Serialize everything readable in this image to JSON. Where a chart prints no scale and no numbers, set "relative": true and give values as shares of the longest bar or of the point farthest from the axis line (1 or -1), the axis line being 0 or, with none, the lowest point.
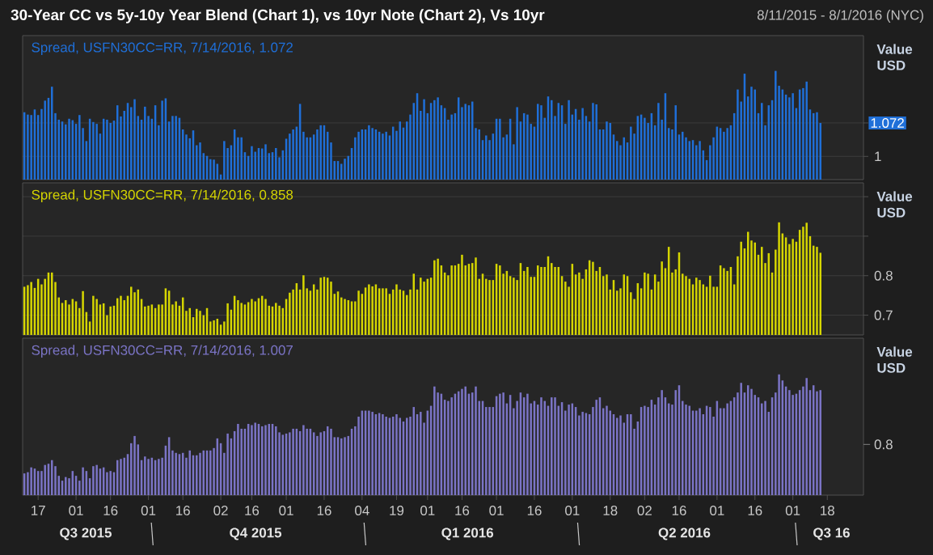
{
  "chart_data": [
    {
      "type": "bar",
      "title": "30-Year CC vs 5y-10y Year Blend (Chart 1), vs 10yr Note (Chart 2), Vs 10yr",
      "subtitle": "8/11/2015 - 8/1/2016 (NYC)",
      "ylabel": "Value USD",
      "ylim": [
        0.95,
        1.26
      ],
      "yticks": [
        1,
        {
          "value": 1.072,
          "label": "1.072"
        }
      ],
      "grid": "y",
      "legend": "top left",
      "tick_labels": "y",
      "categories": [
        null,
        null,
        null,
        null,
        "17",
        null,
        null,
        null,
        null,
        null,
        null,
        null,
        null,
        null,
        null,
        "01",
        null,
        null,
        null,
        null,
        null,
        null,
        null,
        null,
        null,
        "16",
        null,
        null,
        null,
        null,
        null,
        null,
        null,
        null,
        null,
        null,
        "01",
        null,
        null,
        null,
        null,
        null,
        null,
        null,
        null,
        null,
        "16",
        null,
        null,
        null,
        null,
        null,
        null,
        null,
        null,
        null,
        null,
        "02",
        null,
        null,
        null,
        null,
        null,
        null,
        null,
        null,
        "16",
        null,
        null,
        null,
        null,
        null,
        null,
        null,
        null,
        null,
        "01",
        null,
        null,
        null,
        null,
        null,
        null,
        null,
        null,
        null,
        null,
        "16",
        null,
        null,
        null,
        null,
        null,
        null,
        null,
        null,
        null,
        null,
        "04",
        null,
        null,
        null,
        null,
        null,
        null,
        null,
        null,
        null,
        "19",
        null,
        null,
        null,
        null,
        null,
        null,
        null,
        null,
        "01",
        null,
        null,
        null,
        null,
        null,
        null,
        null,
        null,
        null,
        "16",
        null,
        null,
        null,
        null,
        null,
        null,
        null,
        null,
        null,
        "01",
        null,
        null,
        null,
        null,
        null,
        null,
        null,
        null,
        null,
        null,
        "16",
        null,
        null,
        null,
        null,
        null,
        null,
        null,
        null,
        null,
        null,
        "01",
        null,
        null,
        null,
        null,
        null,
        null,
        null,
        null,
        null,
        null,
        "18",
        null,
        null,
        null,
        null,
        null,
        null,
        null,
        null,
        null,
        "02",
        null,
        null,
        null,
        null,
        null,
        null,
        null,
        null,
        null,
        "16",
        null,
        null,
        null,
        null,
        null,
        null,
        null,
        null,
        null,
        null,
        "01",
        null,
        null,
        null,
        null,
        null,
        null,
        null,
        null,
        null,
        null,
        "16",
        null,
        null,
        null,
        null,
        null,
        null,
        null,
        null,
        null,
        null,
        "01",
        null,
        null,
        null,
        null,
        null,
        null,
        null,
        null,
        null,
        "18",
        null,
        null,
        null,
        null,
        null,
        null,
        null,
        null,
        null,
        null
      ],
      "series": [
        {
          "name": "Spread, USFN30CC=RR, 7/14/2016, 1.072",
          "color": "#1f6fd8",
          "values": [
            1.095,
            1.09,
            1.089,
            1.101,
            1.089,
            1.102,
            1.12,
            1.126,
            1.15,
            1.093,
            1.079,
            1.075,
            1.069,
            1.081,
            1.078,
            1.07,
            1.089,
            1.061,
            1.033,
            1.081,
            1.074,
            1.07,
            1.049,
            1.081,
            1.079,
            1.072,
            1.077,
            1.11,
            1.086,
            1.098,
            1.115,
            1.106,
            1.123,
            1.087,
            1.079,
            1.107,
            1.087,
            1.081,
            1.11,
            1.067,
            1.12,
            1.125,
            1.075,
            1.087,
            1.087,
            1.083,
            1.058,
            1.047,
            1.039,
            1.056,
            1.024,
            1.03,
            1.007,
            1.001,
            0.994,
            0.993,
            0.984,
            0.961,
            1.033,
            1.018,
            1.024,
            1.058,
            1.041,
            1.041,
            1.009,
            1.001,
            1.022,
            1.01,
            1.018,
            1.017,
            1.026,
            1.007,
            1.009,
            1.018,
            0.998,
            1.013,
            1.038,
            1.049,
            1.058,
            1.064,
            1.113,
            1.053,
            1.041,
            1.041,
            1.047,
            1.058,
            1.067,
            1.067,
            1.053,
            1.03,
            0.99,
            0.99,
            0.984,
            0.995,
            1.001,
            1.018,
            1.041,
            1.053,
            1.058,
            1.058,
            1.067,
            1.061,
            1.058,
            1.053,
            1.049,
            1.053,
            1.045,
            1.064,
            1.055,
            1.075,
            1.062,
            1.075,
            1.09,
            1.115,
            1.136,
            1.098,
            1.123,
            1.093,
            1.115,
            1.121,
            1.127,
            1.11,
            1.104,
            1.079,
            1.09,
            1.093,
            1.127,
            1.106,
            1.113,
            1.11,
            1.118,
            1.061,
            1.058,
            1.035,
            1.045,
            1.035,
            1.049,
            1.081,
            1.081,
            1.041,
            1.047,
            1.081,
            1.026,
            1.106,
            1.075,
            1.093,
            1.09,
            1.07,
            1.064,
            1.113,
            1.11,
            1.083,
            1.129,
            1.121,
            1.087,
            1.115,
            1.11,
            1.07,
            1.121,
            1.09,
            1.102,
            1.079,
            1.104,
            1.087,
            1.075,
            1.115,
            1.112,
            1.058,
            1.058,
            1.075,
            1.072,
            1.047,
            1.033,
            1.024,
            1.041,
            1.03,
            1.064,
            1.049,
            1.087,
            1.09,
            1.083,
            1.072,
            1.093,
            1.067,
            1.115,
            1.079,
            1.136,
            1.061,
            1.058,
            1.11,
            1.047,
            1.053,
            1.041,
            1.033,
            1.035,
            1.024,
            1.033,
            1.013,
            0.992,
            1.024,
            1.041,
            1.064,
            1.061,
            1.053,
            1.061,
            1.067,
            1.093,
            1.144,
            1.118,
            1.178,
            1.129,
            1.15,
            1.144,
            1.093,
            1.115,
            1.067,
            1.11,
            1.121,
            1.184,
            1.152,
            1.144,
            1.133,
            1.127,
            1.136,
            1.104,
            1.144,
            1.147,
            1.161,
            1.101,
            1.093,
            1.095,
            1.072,
            null,
            null,
            null,
            null,
            null,
            null,
            null,
            null,
            null,
            null,
            null,
            null
          ]
        }
      ]
    },
    {
      "type": "bar",
      "ylabel": "Value USD",
      "ylim": [
        0.65,
        1.035
      ],
      "yticks": [
        0.7,
        0.8,
        {
          "value": 0.9,
          "label": null
        },
        {
          "value": 1.0,
          "label": null
        }
      ],
      "grid": "y",
      "legend": "top left",
      "tick_labels": "y",
      "categories": [
        null,
        null,
        null,
        null,
        "17",
        null,
        null,
        null,
        null,
        null,
        null,
        null,
        null,
        null,
        null,
        "01",
        null,
        null,
        null,
        null,
        null,
        null,
        null,
        null,
        null,
        "16",
        null,
        null,
        null,
        null,
        null,
        null,
        null,
        null,
        null,
        null,
        "01",
        null,
        null,
        null,
        null,
        null,
        null,
        null,
        null,
        null,
        "16",
        null,
        null,
        null,
        null,
        null,
        null,
        null,
        null,
        null,
        null,
        "02",
        null,
        null,
        null,
        null,
        null,
        null,
        null,
        null,
        "16",
        null,
        null,
        null,
        null,
        null,
        null,
        null,
        null,
        null,
        "01",
        null,
        null,
        null,
        null,
        null,
        null,
        null,
        null,
        null,
        null,
        "16",
        null,
        null,
        null,
        null,
        null,
        null,
        null,
        null,
        null,
        null,
        "04",
        null,
        null,
        null,
        null,
        null,
        null,
        null,
        null,
        null,
        "19",
        null,
        null,
        null,
        null,
        null,
        null,
        null,
        null,
        "01",
        null,
        null,
        null,
        null,
        null,
        null,
        null,
        null,
        null,
        "16",
        null,
        null,
        null,
        null,
        null,
        null,
        null,
        null,
        null,
        "01",
        null,
        null,
        null,
        null,
        null,
        null,
        null,
        null,
        null,
        null,
        "16",
        null,
        null,
        null,
        null,
        null,
        null,
        null,
        null,
        null,
        null,
        "01",
        null,
        null,
        null,
        null,
        null,
        null,
        null,
        null,
        null,
        null,
        "18",
        null,
        null,
        null,
        null,
        null,
        null,
        null,
        null,
        null,
        "02",
        null,
        null,
        null,
        null,
        null,
        null,
        null,
        null,
        null,
        "16",
        null,
        null,
        null,
        null,
        null,
        null,
        null,
        null,
        null,
        null,
        "01",
        null,
        null,
        null,
        null,
        null,
        null,
        null,
        null,
        null,
        null,
        "16",
        null,
        null,
        null,
        null,
        null,
        null,
        null,
        null,
        null,
        null,
        "01",
        null,
        null,
        null,
        null,
        null,
        null,
        null,
        null,
        null,
        "18",
        null,
        null,
        null,
        null,
        null,
        null,
        null,
        null,
        null,
        null
      ],
      "series": [
        {
          "name": "Spread, USFN30CC=RR, 7/14/2016, 0.858",
          "color": "#d6d600",
          "values": [
            0.772,
            0.776,
            0.784,
            0.769,
            0.792,
            0.778,
            0.792,
            0.808,
            0.808,
            0.784,
            0.745,
            0.731,
            0.738,
            0.727,
            0.741,
            0.735,
            0.718,
            0.761,
            0.708,
            0.684,
            0.749,
            0.741,
            0.727,
            0.73,
            0.7,
            0.722,
            0.724,
            0.743,
            0.749,
            0.738,
            0.749,
            0.772,
            0.758,
            0.765,
            0.741,
            0.722,
            0.724,
            0.727,
            0.718,
            0.727,
            0.727,
            0.768,
            0.762,
            0.727,
            0.735,
            0.724,
            0.745,
            0.711,
            0.718,
            0.695,
            0.716,
            0.711,
            0.7,
            0.718,
            0.684,
            0.687,
            0.691,
            0.676,
            0.684,
            0.73,
            0.714,
            0.749,
            0.738,
            0.731,
            0.727,
            0.733,
            0.741,
            0.735,
            0.743,
            0.749,
            0.741,
            0.724,
            0.722,
            0.731,
            0.724,
            0.718,
            0.741,
            0.757,
            0.765,
            0.781,
            0.765,
            0.801,
            0.768,
            0.762,
            0.778,
            0.765,
            0.795,
            0.797,
            0.795,
            0.785,
            0.754,
            0.76,
            0.745,
            0.741,
            0.738,
            0.735,
            0.735,
            0.762,
            0.754,
            0.77,
            0.778,
            0.773,
            0.778,
            0.768,
            0.768,
            0.768,
            0.754,
            0.765,
            0.778,
            0.765,
            0.762,
            0.751,
            0.765,
            0.805,
            0.765,
            0.795,
            0.785,
            0.792,
            0.795,
            0.839,
            0.843,
            0.826,
            0.808,
            0.801,
            0.826,
            0.826,
            0.83,
            0.853,
            0.826,
            0.83,
            0.832,
            0.846,
            0.792,
            0.805,
            0.792,
            0.789,
            0.789,
            0.83,
            0.826,
            0.805,
            0.812,
            0.799,
            0.795,
            0.789,
            0.832,
            0.812,
            0.822,
            0.797,
            0.797,
            0.826,
            0.822,
            0.822,
            0.849,
            0.832,
            0.822,
            0.822,
            0.799,
            0.785,
            0.772,
            0.83,
            0.803,
            0.808,
            0.792,
            0.816,
            0.839,
            0.835,
            0.812,
            0.822,
            0.799,
            0.803,
            0.765,
            0.789,
            0.762,
            0.768,
            0.803,
            0.799,
            0.758,
            0.741,
            0.781,
            0.768,
            0.808,
            0.805,
            0.765,
            0.803,
            0.785,
            0.836,
            0.819,
            0.873,
            0.808,
            0.816,
            0.859,
            0.805,
            0.799,
            0.792,
            0.778,
            0.795,
            0.789,
            0.778,
            0.772,
            0.8,
            0.772,
            0.772,
            0.826,
            0.819,
            0.812,
            0.822,
            0.778,
            0.849,
            0.886,
            0.869,
            0.911,
            0.889,
            0.884,
            0.853,
            0.873,
            0.832,
            0.857,
            0.808,
            0.866,
            0.935,
            0.907,
            0.897,
            0.88,
            0.893,
            0.886,
            0.916,
            0.924,
            0.934,
            0.9,
            0.876,
            0.873,
            0.858,
            null,
            null,
            null,
            null,
            null,
            null,
            null,
            null,
            null,
            null,
            null,
            null
          ]
        }
      ]
    },
    {
      "type": "bar",
      "ylabel": "Value USD",
      "relative": true,
      "legend": "top left",
      "annotations": [
        "Q3 2015",
        "Q4 2015",
        "Q1 2016",
        "Q2 2016",
        "Q3 16",
        "0.8"
      ],
      "categories": [
        null,
        null,
        null,
        null,
        "17",
        null,
        null,
        null,
        null,
        null,
        null,
        null,
        null,
        null,
        null,
        "01",
        null,
        null,
        null,
        null,
        null,
        null,
        null,
        null,
        null,
        "16",
        null,
        null,
        null,
        null,
        null,
        null,
        null,
        null,
        null,
        null,
        "01",
        null,
        null,
        null,
        null,
        null,
        null,
        null,
        null,
        null,
        "16",
        null,
        null,
        null,
        null,
        null,
        null,
        null,
        null,
        null,
        null,
        "02",
        null,
        null,
        null,
        null,
        null,
        null,
        null,
        null,
        "16",
        null,
        null,
        null,
        null,
        null,
        null,
        null,
        null,
        null,
        "01",
        null,
        null,
        null,
        null,
        null,
        null,
        null,
        null,
        null,
        null,
        "16",
        null,
        null,
        null,
        null,
        null,
        null,
        null,
        null,
        null,
        null,
        "04",
        null,
        null,
        null,
        null,
        null,
        null,
        null,
        null,
        null,
        "19",
        null,
        null,
        null,
        null,
        null,
        null,
        null,
        null,
        "01",
        null,
        null,
        null,
        null,
        null,
        null,
        null,
        null,
        null,
        "16",
        null,
        null,
        null,
        null,
        null,
        null,
        null,
        null,
        null,
        "01",
        null,
        null,
        null,
        null,
        null,
        null,
        null,
        null,
        null,
        null,
        "16",
        null,
        null,
        null,
        null,
        null,
        null,
        null,
        null,
        null,
        null,
        "01",
        null,
        null,
        null,
        null,
        null,
        null,
        null,
        null,
        null,
        null,
        "18",
        null,
        null,
        null,
        null,
        null,
        null,
        null,
        null,
        null,
        "02",
        null,
        null,
        null,
        null,
        null,
        null,
        null,
        null,
        null,
        "16",
        null,
        null,
        null,
        null,
        null,
        null,
        null,
        null,
        null,
        null,
        "01",
        null,
        null,
        null,
        null,
        null,
        null,
        null,
        null,
        null,
        null,
        "16",
        null,
        null,
        null,
        null,
        null,
        null,
        null,
        null,
        null,
        null,
        "01",
        null,
        null,
        null,
        null,
        null,
        null,
        null,
        null,
        null,
        "18",
        null,
        null,
        null,
        null,
        null,
        null,
        null,
        null,
        null,
        null
      ],
      "series": [
        {
          "name": "Spread, USFN30CC=RR, 7/14/2016, 1.007",
          "color": "#7b74c6",
          "values": [
            0.18,
            0.19,
            0.23,
            0.22,
            0.2,
            0.2,
            0.25,
            0.26,
            0.29,
            0.24,
            0.16,
            0.12,
            0.15,
            0.14,
            0.2,
            0.16,
            0.12,
            0.23,
            0.2,
            0.14,
            0.24,
            0.25,
            0.22,
            0.23,
            0.19,
            0.2,
            0.19,
            0.29,
            0.3,
            0.31,
            0.34,
            0.43,
            0.49,
            0.42,
            0.29,
            0.32,
            0.3,
            0.31,
            0.29,
            0.3,
            0.31,
            0.41,
            0.48,
            0.37,
            0.35,
            0.34,
            0.35,
            0.31,
            0.37,
            0.33,
            0.33,
            0.35,
            0.37,
            0.37,
            0.37,
            0.39,
            0.47,
            0.43,
            0.35,
            0.51,
            0.47,
            0.53,
            0.59,
            0.55,
            0.55,
            0.59,
            0.58,
            0.6,
            0.59,
            0.57,
            0.58,
            0.59,
            0.59,
            0.57,
            0.52,
            0.5,
            0.51,
            0.52,
            0.55,
            0.55,
            0.53,
            0.58,
            0.55,
            0.55,
            0.52,
            0.49,
            0.52,
            0.53,
            0.57,
            0.55,
            0.48,
            0.48,
            0.47,
            0.48,
            0.49,
            0.55,
            0.57,
            0.65,
            0.7,
            0.7,
            0.7,
            0.69,
            0.67,
            0.68,
            0.67,
            0.65,
            0.64,
            0.65,
            0.67,
            0.64,
            0.61,
            0.64,
            0.65,
            0.73,
            0.67,
            0.69,
            0.6,
            0.7,
            0.74,
            0.9,
            0.85,
            0.84,
            0.79,
            0.78,
            0.81,
            0.84,
            0.86,
            0.88,
            0.9,
            0.84,
            0.85,
            0.9,
            0.78,
            0.78,
            0.73,
            0.73,
            0.73,
            0.82,
            0.84,
            0.85,
            0.76,
            0.83,
            0.72,
            0.78,
            0.85,
            0.81,
            0.84,
            0.76,
            0.78,
            0.75,
            0.81,
            0.78,
            0.74,
            0.81,
            0.81,
            0.74,
            0.77,
            0.7,
            0.75,
            0.76,
            0.73,
            0.66,
            0.69,
            0.68,
            0.67,
            0.73,
            0.79,
            0.81,
            0.72,
            0.74,
            0.7,
            0.67,
            0.64,
            0.66,
            0.6,
            0.67,
            0.67,
            0.55,
            0.61,
            0.73,
            0.74,
            0.73,
            0.79,
            0.75,
            0.81,
            0.87,
            0.81,
            0.76,
            0.75,
            0.87,
            0.91,
            0.78,
            0.75,
            0.74,
            0.7,
            0.7,
            0.72,
            0.67,
            0.74,
            0.73,
            0.65,
            0.78,
            0.72,
            0.72,
            0.76,
            0.78,
            0.81,
            0.85,
            0.93,
            0.85,
            0.91,
            0.88,
            0.83,
            0.81,
            0.76,
            0.78,
            0.69,
            0.81,
            0.85,
            1.0,
            0.95,
            0.9,
            0.87,
            0.83,
            0.84,
            0.87,
            0.9,
            0.97,
            0.87,
            0.91,
            0.86,
            0.87,
            null,
            null,
            null,
            null,
            null,
            null,
            null,
            null,
            null,
            null,
            null,
            null
          ]
        }
      ]
    }
  ]
}
